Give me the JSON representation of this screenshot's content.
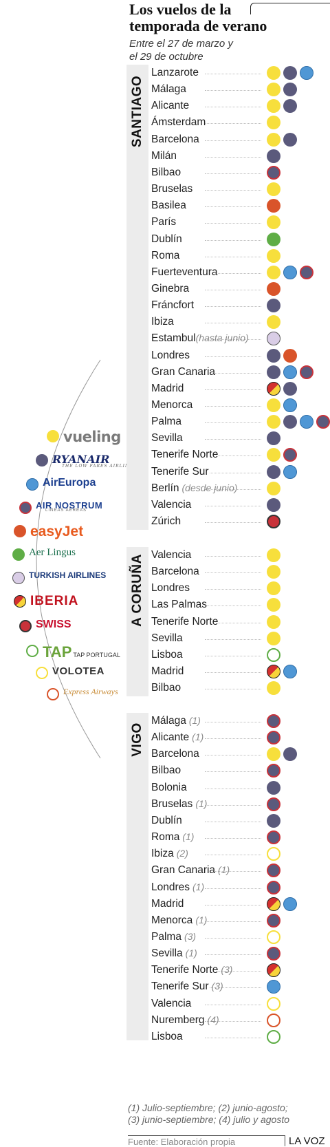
{
  "header": {
    "title_line1": "Los vuelos de la",
    "title_line2": "temporada de verano",
    "subtitle_line1": "Entre el 27 de marzo y",
    "subtitle_line2": "el 29 de octubre"
  },
  "colors": {
    "vueling": "#f7df3c",
    "ryanair": "#5b5a7c",
    "aireuropa": "#4f97d5",
    "airnostrum_fill": "#5b5a7c",
    "airnostrum_ring": "#c8323a",
    "easyjet": "#d9542a",
    "aerlingus": "#5fad46",
    "turkish": "#d9cde6",
    "iberia_red": "#d3312f",
    "iberia_yellow": "#f7d43a",
    "swiss": "#c8323a",
    "tap_ring": "#5fad46",
    "volotea_ring": "#f7df3c",
    "express_ring": "#d9542a"
  },
  "legend": [
    {
      "airline": "vueling",
      "label": "vueling",
      "icon": "vueling"
    },
    {
      "airline": "ryanair",
      "label": "RYANAIR",
      "tag": "THE LOW FARES AIRLINE",
      "icon": "ryanair"
    },
    {
      "airline": "aireuropa",
      "label": "AirEuropa",
      "icon": "aireuropa"
    },
    {
      "airline": "airnostrum",
      "label": "AIR NOSTRUM",
      "tag": "LINEAS AEREAS",
      "icon": "airnostrum"
    },
    {
      "airline": "easyjet",
      "label": "easyJet",
      "icon": "easyjet"
    },
    {
      "airline": "aerlingus",
      "label": "Aer Lingus",
      "icon": "aerlingus"
    },
    {
      "airline": "turkish",
      "label": "TURKISH AIRLINES",
      "icon": "turkish"
    },
    {
      "airline": "iberia",
      "label": "IBERIA",
      "icon": "iberia"
    },
    {
      "airline": "swiss",
      "label": "SWISS",
      "icon": "swiss"
    },
    {
      "airline": "tap",
      "label": "TAP",
      "tag": "TAP PORTUGAL",
      "icon": "tap"
    },
    {
      "airline": "volotea",
      "label": "VOLOTEA",
      "icon": "volotea"
    },
    {
      "airline": "express",
      "label": "Express Airways",
      "icon": "express"
    }
  ],
  "regions": [
    {
      "name": "SANTIAGO",
      "rows": [
        {
          "city": "Lanzarote",
          "note": "",
          "icons": [
            "vueling",
            "ryanair",
            "aireuropa"
          ]
        },
        {
          "city": "Málaga",
          "note": "",
          "icons": [
            "vueling",
            "ryanair"
          ]
        },
        {
          "city": "Alicante",
          "note": "",
          "icons": [
            "vueling",
            "ryanair"
          ]
        },
        {
          "city": "Ámsterdam",
          "note": "",
          "icons": [
            "vueling"
          ]
        },
        {
          "city": "Barcelona",
          "note": "",
          "icons": [
            "vueling",
            "ryanair"
          ]
        },
        {
          "city": "Milán",
          "note": "",
          "icons": [
            "ryanair"
          ]
        },
        {
          "city": "Bilbao",
          "note": "",
          "icons": [
            "airnostrum"
          ]
        },
        {
          "city": "Bruselas",
          "note": "",
          "icons": [
            "vueling"
          ]
        },
        {
          "city": "Basilea",
          "note": "",
          "icons": [
            "easyjet"
          ]
        },
        {
          "city": "París",
          "note": "",
          "icons": [
            "vueling"
          ]
        },
        {
          "city": "Dublín",
          "note": "",
          "icons": [
            "aerlingus"
          ]
        },
        {
          "city": "Roma",
          "note": "",
          "icons": [
            "vueling"
          ]
        },
        {
          "city": "Fuerteventura",
          "note": "",
          "icons": [
            "vueling",
            "aireuropa",
            "airnostrum"
          ]
        },
        {
          "city": "Ginebra",
          "note": "",
          "icons": [
            "easyjet"
          ]
        },
        {
          "city": "Fráncfort",
          "note": "",
          "icons": [
            "ryanair"
          ]
        },
        {
          "city": "Ibiza",
          "note": "",
          "icons": [
            "vueling"
          ]
        },
        {
          "city": "Estambul",
          "note": "(hasta junio)",
          "icons": [
            "turkish"
          ]
        },
        {
          "city": "Londres",
          "note": "",
          "icons": [
            "ryanair",
            "easyjet"
          ]
        },
        {
          "city": "Gran Canaria",
          "note": "",
          "icons": [
            "ryanair",
            "aireuropa",
            "airnostrum"
          ]
        },
        {
          "city": "Madrid",
          "note": "",
          "icons": [
            "iberia",
            "ryanair"
          ]
        },
        {
          "city": "Menorca",
          "note": "",
          "icons": [
            "vueling",
            "aireuropa"
          ]
        },
        {
          "city": "Palma",
          "note": "",
          "icons": [
            "vueling",
            "ryanair",
            "aireuropa",
            "airnostrum"
          ]
        },
        {
          "city": "Sevilla",
          "note": "",
          "icons": [
            "ryanair"
          ]
        },
        {
          "city": "Tenerife Norte",
          "note": "",
          "icons": [
            "vueling",
            "airnostrum"
          ]
        },
        {
          "city": "Tenerife Sur",
          "note": "",
          "icons": [
            "ryanair",
            "aireuropa"
          ]
        },
        {
          "city": "Berlín",
          "note": "(desde junio)",
          "icons": [
            "vueling"
          ]
        },
        {
          "city": "Valencia",
          "note": "",
          "icons": [
            "ryanair"
          ]
        },
        {
          "city": "Zúrich",
          "note": "",
          "icons": [
            "swiss"
          ]
        }
      ]
    },
    {
      "name": "A CORUÑA",
      "rows": [
        {
          "city": "Valencia",
          "note": "",
          "icons": [
            "vueling"
          ]
        },
        {
          "city": "Barcelona",
          "note": "",
          "icons": [
            "vueling"
          ]
        },
        {
          "city": "Londres",
          "note": "",
          "icons": [
            "vueling"
          ]
        },
        {
          "city": "Las Palmas",
          "note": "",
          "icons": [
            "vueling"
          ]
        },
        {
          "city": "Tenerife Norte",
          "note": "",
          "icons": [
            "vueling"
          ]
        },
        {
          "city": "Sevilla",
          "note": "",
          "icons": [
            "vueling"
          ]
        },
        {
          "city": "Lisboa",
          "note": "",
          "icons": [
            "tap"
          ]
        },
        {
          "city": "Madrid",
          "note": "",
          "icons": [
            "iberia",
            "aireuropa"
          ]
        },
        {
          "city": "Bilbao",
          "note": "",
          "icons": [
            "vueling"
          ]
        }
      ]
    },
    {
      "name": "VIGO",
      "rows": [
        {
          "city": "Málaga",
          "note": "(1)",
          "icons": [
            "airnostrum"
          ]
        },
        {
          "city": "Alicante",
          "note": "(1)",
          "icons": [
            "airnostrum"
          ]
        },
        {
          "city": "Barcelona",
          "note": "",
          "icons": [
            "vueling",
            "ryanair"
          ]
        },
        {
          "city": "Bilbao",
          "note": "",
          "icons": [
            "airnostrum"
          ]
        },
        {
          "city": "Bolonia",
          "note": "",
          "icons": [
            "ryanair"
          ]
        },
        {
          "city": "Bruselas",
          "note": "(1)",
          "icons": [
            "airnostrum"
          ]
        },
        {
          "city": "Dublín",
          "note": "",
          "icons": [
            "ryanair"
          ]
        },
        {
          "city": "Roma",
          "note": "(1)",
          "icons": [
            "airnostrum"
          ]
        },
        {
          "city": "Ibiza",
          "note": "(2)",
          "icons": [
            "volotea"
          ]
        },
        {
          "city": "Gran Canaria",
          "note": "(1)",
          "icons": [
            "airnostrum"
          ]
        },
        {
          "city": "Londres",
          "note": "(1)",
          "icons": [
            "airnostrum"
          ]
        },
        {
          "city": "Madrid",
          "note": "",
          "icons": [
            "iberia",
            "aireuropa"
          ]
        },
        {
          "city": "Menorca",
          "note": "(1)",
          "icons": [
            "airnostrum"
          ]
        },
        {
          "city": "Palma",
          "note": "(3)",
          "icons": [
            "volotea"
          ]
        },
        {
          "city": "Sevilla",
          "note": "(1)",
          "icons": [
            "airnostrum"
          ]
        },
        {
          "city": "Tenerife Norte",
          "note": "(3)",
          "icons": [
            "iberia"
          ]
        },
        {
          "city": "Tenerife Sur",
          "note": "(3)",
          "icons": [
            "aireuropa"
          ]
        },
        {
          "city": "Valencia",
          "note": "",
          "icons": [
            "volotea"
          ]
        },
        {
          "city": "Nuremberg",
          "note": "(4)",
          "icons": [
            "express"
          ]
        },
        {
          "city": "Lisboa",
          "note": "",
          "icons": [
            "tap"
          ]
        }
      ]
    }
  ],
  "footnote": {
    "line1": "(1) Julio-septiembre; (2) junio-agosto;",
    "line2": "(3) junio-septiembre; (4) julio y agosto"
  },
  "source": "Fuente: Elaboración propia",
  "brand": "LA VOZ"
}
